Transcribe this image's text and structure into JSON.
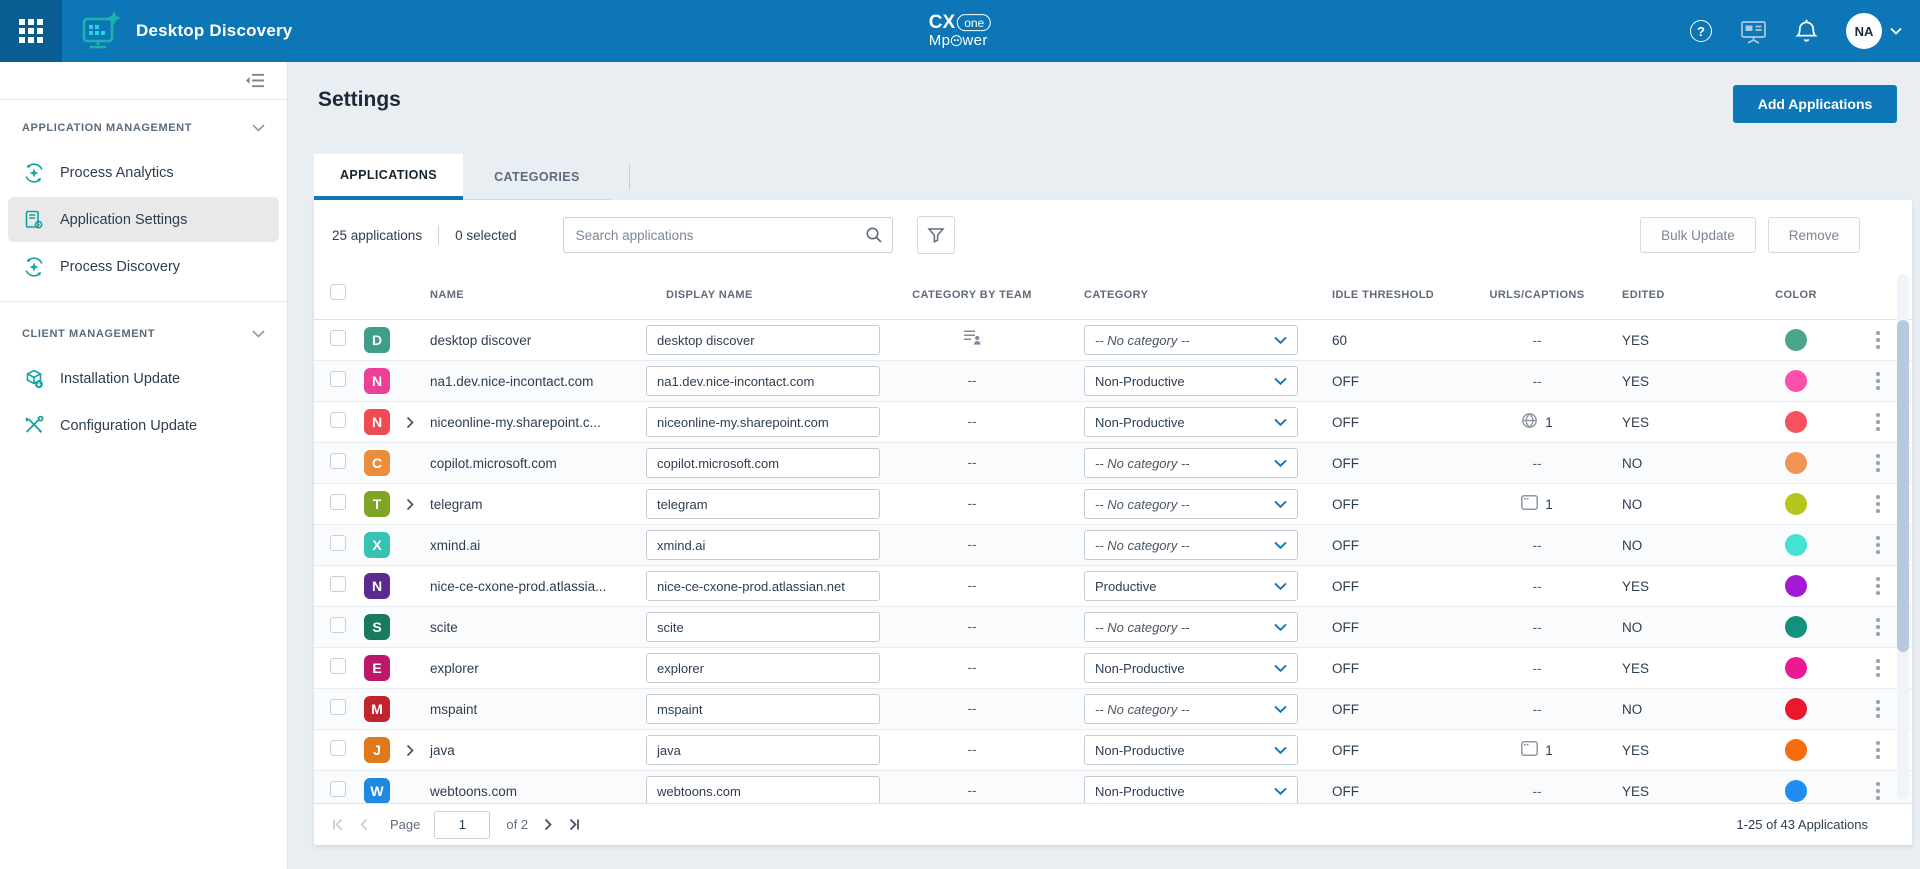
{
  "header": {
    "app_title": "Desktop Discovery",
    "logo": {
      "cx": "CX",
      "one": "one",
      "mp_pre": "Mp",
      "mp_post": "wer"
    },
    "help_glyph": "?",
    "avatar": "NA",
    "icons": [
      "app-launcher-icon",
      "desktop-discovery-logo-icon",
      "help-icon",
      "training-screen-icon",
      "notifications-bell-icon",
      "avatar-chevron-icon"
    ],
    "accent_color": "#0c76b6"
  },
  "sidebar": {
    "sections": [
      {
        "label": "APPLICATION MANAGEMENT",
        "items": [
          {
            "label": "Process Analytics",
            "icon": "process-analytics-icon",
            "active": false
          },
          {
            "label": "Application Settings",
            "icon": "application-settings-icon",
            "active": true
          },
          {
            "label": "Process Discovery",
            "icon": "process-discovery-icon",
            "active": false
          }
        ]
      },
      {
        "label": "CLIENT MANAGEMENT",
        "items": [
          {
            "label": "Installation Update",
            "icon": "installation-update-icon",
            "active": false
          },
          {
            "label": "Configuration Update",
            "icon": "configuration-update-icon",
            "active": false
          }
        ]
      }
    ],
    "icon_color": "#11a3a0"
  },
  "main": {
    "title": "Settings",
    "add_button": "Add Applications",
    "tabs": {
      "applications": "APPLICATIONS",
      "categories": "CATEGORIES"
    },
    "toolbar": {
      "count": "25 applications",
      "selected": "0 selected",
      "search_placeholder": "Search applications",
      "bulk_update": "Bulk Update",
      "remove": "Remove"
    },
    "table": {
      "columns": {
        "name": "NAME",
        "display_name": "DISPLAY NAME",
        "team": "CATEGORY BY TEAM",
        "category": "CATEGORY",
        "idle": "IDLE THRESHOLD",
        "urls": "URLS/CAPTIONS",
        "edited": "EDITED",
        "color": "COLOR"
      },
      "rows": [
        {
          "letter": "D",
          "icon_bg": "#3f9e8b",
          "expandable": false,
          "name": "desktop discover",
          "display_name": "desktop discover",
          "team": "icon",
          "category": "-- No category --",
          "category_is_placeholder": true,
          "idle": "60",
          "urls_type": null,
          "urls_count": "",
          "edited": "YES",
          "dot": "#4ca48c"
        },
        {
          "letter": "N",
          "icon_bg": "#ec3f98",
          "expandable": false,
          "name": "na1.dev.nice-incontact.com",
          "display_name": "na1.dev.nice-incontact.com",
          "team": "--",
          "category": "Non-Productive",
          "category_is_placeholder": false,
          "idle": "OFF",
          "urls_type": null,
          "urls_count": "",
          "edited": "YES",
          "dot": "#ff4fa8"
        },
        {
          "letter": "N",
          "icon_bg": "#ef4b55",
          "expandable": true,
          "name": "niceonline-my.sharepoint.c...",
          "display_name": "niceonline-my.sharepoint.com",
          "team": "--",
          "category": "Non-Productive",
          "category_is_placeholder": false,
          "idle": "OFF",
          "urls_type": "globe",
          "urls_count": "1",
          "edited": "YES",
          "dot": "#f5525e"
        },
        {
          "letter": "C",
          "icon_bg": "#eb8e3c",
          "expandable": false,
          "name": "copilot.microsoft.com",
          "display_name": "copilot.microsoft.com",
          "team": "--",
          "category": "-- No category --",
          "category_is_placeholder": true,
          "idle": "OFF",
          "urls_type": null,
          "urls_count": "",
          "edited": "NO",
          "dot": "#f19355"
        },
        {
          "letter": "T",
          "icon_bg": "#7fa525",
          "expandable": true,
          "name": "telegram",
          "display_name": "telegram",
          "team": "--",
          "category": "-- No category --",
          "category_is_placeholder": true,
          "idle": "OFF",
          "urls_type": "window",
          "urls_count": "1",
          "edited": "NO",
          "dot": "#b4c61c"
        },
        {
          "letter": "X",
          "icon_bg": "#38c2b4",
          "expandable": false,
          "name": "xmind.ai",
          "display_name": "xmind.ai",
          "team": "--",
          "category": "-- No category --",
          "category_is_placeholder": true,
          "idle": "OFF",
          "urls_type": null,
          "urls_count": "",
          "edited": "NO",
          "dot": "#43e2d2"
        },
        {
          "letter": "N",
          "icon_bg": "#5c2b8f",
          "expandable": false,
          "name": "nice-ce-cxone-prod.atlassia...",
          "display_name": "nice-ce-cxone-prod.atlassian.net",
          "team": "--",
          "category": "Productive",
          "category_is_placeholder": false,
          "idle": "OFF",
          "urls_type": null,
          "urls_count": "",
          "edited": "YES",
          "dot": "#a21ad6"
        },
        {
          "letter": "S",
          "icon_bg": "#187a60",
          "expandable": false,
          "name": "scite",
          "display_name": "scite",
          "team": "--",
          "category": "-- No category --",
          "category_is_placeholder": true,
          "idle": "OFF",
          "urls_type": null,
          "urls_count": "",
          "edited": "NO",
          "dot": "#13917d"
        },
        {
          "letter": "E",
          "icon_bg": "#bd1769",
          "expandable": false,
          "name": "explorer",
          "display_name": "explorer",
          "team": "--",
          "category": "Non-Productive",
          "category_is_placeholder": false,
          "idle": "OFF",
          "urls_type": null,
          "urls_count": "",
          "edited": "YES",
          "dot": "#ec1a92"
        },
        {
          "letter": "M",
          "icon_bg": "#c2242e",
          "expandable": false,
          "name": "mspaint",
          "display_name": "mspaint",
          "team": "--",
          "category": "-- No category --",
          "category_is_placeholder": true,
          "idle": "OFF",
          "urls_type": null,
          "urls_count": "",
          "edited": "NO",
          "dot": "#e9182e"
        },
        {
          "letter": "J",
          "icon_bg": "#e0791a",
          "expandable": true,
          "name": "java",
          "display_name": "java",
          "team": "--",
          "category": "Non-Productive",
          "category_is_placeholder": false,
          "idle": "OFF",
          "urls_type": "window",
          "urls_count": "1",
          "edited": "YES",
          "dot": "#f56d0c"
        },
        {
          "letter": "W",
          "icon_bg": "#1f88e0",
          "expandable": false,
          "name": "webtoons.com",
          "display_name": "webtoons.com",
          "team": "--",
          "category": "Non-Productive",
          "category_is_placeholder": false,
          "idle": "OFF",
          "urls_type": null,
          "urls_count": "",
          "edited": "YES",
          "dot": "#1e8df2"
        }
      ]
    },
    "pagination": {
      "page_label": "Page",
      "page": "1",
      "of": "of 2",
      "range": "1-25 of 43 Applications"
    }
  }
}
